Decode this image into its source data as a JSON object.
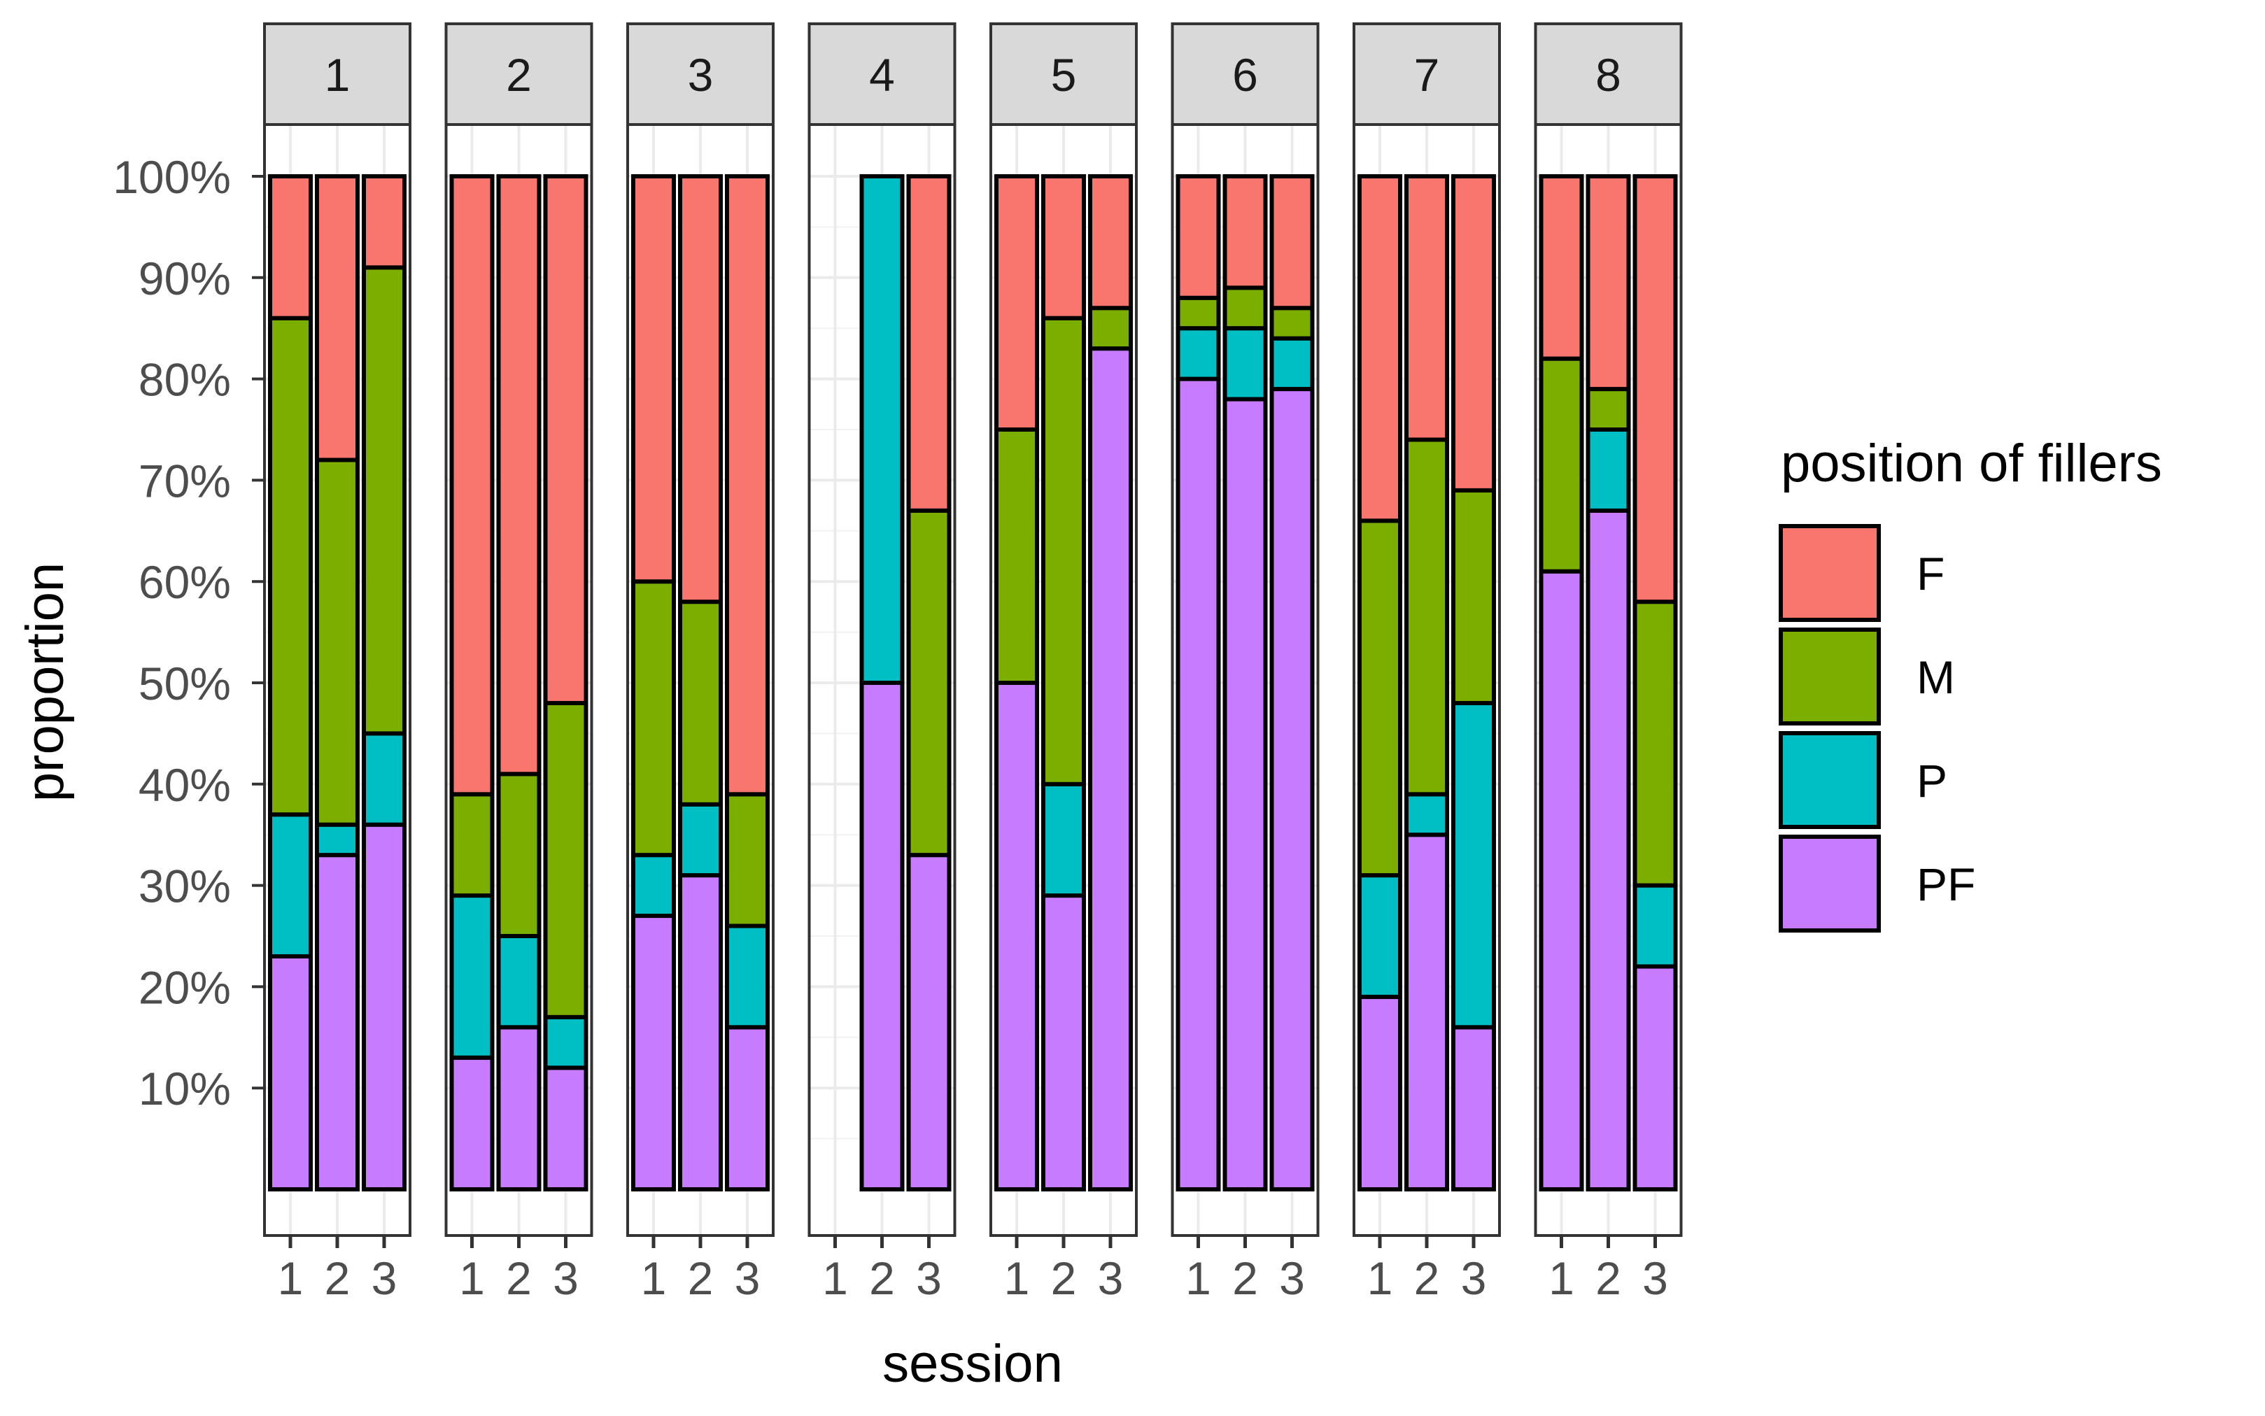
{
  "chart_data": {
    "type": "bar",
    "stacked": true,
    "faceted_by": "speaker",
    "xlabel": "session",
    "ylabel": "proportion",
    "y_ticks": [
      "10%",
      "20%",
      "30%",
      "40%",
      "50%",
      "60%",
      "70%",
      "80%",
      "90%",
      "100%"
    ],
    "ylim": [
      0,
      100
    ],
    "stack_order_bottom_to_top": [
      "PF",
      "P",
      "M",
      "F"
    ],
    "legend": {
      "title": "position of fillers",
      "position": "right",
      "entries": [
        {
          "name": "F",
          "color": "#F8766D"
        },
        {
          "name": "M",
          "color": "#7CAE00"
        },
        {
          "name": "P",
          "color": "#00BFC4"
        },
        {
          "name": "PF",
          "color": "#C77CFF"
        }
      ]
    },
    "panels": [
      {
        "label": "1",
        "sessions": [
          "1",
          "2",
          "3"
        ],
        "series": [
          {
            "name": "PF",
            "values": [
              23,
              33,
              36
            ]
          },
          {
            "name": "P",
            "values": [
              14,
              3,
              9
            ]
          },
          {
            "name": "M",
            "values": [
              49,
              36,
              46
            ]
          },
          {
            "name": "F",
            "values": [
              14,
              28,
              9
            ]
          }
        ]
      },
      {
        "label": "2",
        "sessions": [
          "1",
          "2",
          "3"
        ],
        "series": [
          {
            "name": "PF",
            "values": [
              13,
              16,
              12
            ]
          },
          {
            "name": "P",
            "values": [
              16,
              9,
              5
            ]
          },
          {
            "name": "M",
            "values": [
              10,
              16,
              31
            ]
          },
          {
            "name": "F",
            "values": [
              61,
              59,
              52
            ]
          }
        ]
      },
      {
        "label": "3",
        "sessions": [
          "1",
          "2",
          "3"
        ],
        "series": [
          {
            "name": "PF",
            "values": [
              27,
              31,
              16
            ]
          },
          {
            "name": "P",
            "values": [
              6,
              7,
              10
            ]
          },
          {
            "name": "M",
            "values": [
              27,
              20,
              13
            ]
          },
          {
            "name": "F",
            "values": [
              40,
              42,
              61
            ]
          }
        ]
      },
      {
        "label": "4",
        "sessions": [
          "1",
          "2",
          "3"
        ],
        "series": [
          {
            "name": "PF",
            "values": [
              0,
              50,
              33
            ]
          },
          {
            "name": "P",
            "values": [
              0,
              50,
              0
            ]
          },
          {
            "name": "M",
            "values": [
              0,
              0,
              34
            ]
          },
          {
            "name": "F",
            "values": [
              0,
              0,
              33
            ]
          }
        ]
      },
      {
        "label": "5",
        "sessions": [
          "1",
          "2",
          "3"
        ],
        "series": [
          {
            "name": "PF",
            "values": [
              50,
              29,
              83
            ]
          },
          {
            "name": "P",
            "values": [
              0,
              11,
              0
            ]
          },
          {
            "name": "M",
            "values": [
              25,
              46,
              4
            ]
          },
          {
            "name": "F",
            "values": [
              25,
              14,
              13
            ]
          }
        ]
      },
      {
        "label": "6",
        "sessions": [
          "1",
          "2",
          "3"
        ],
        "series": [
          {
            "name": "PF",
            "values": [
              80,
              78,
              79
            ]
          },
          {
            "name": "P",
            "values": [
              5,
              7,
              5
            ]
          },
          {
            "name": "M",
            "values": [
              3,
              4,
              3
            ]
          },
          {
            "name": "F",
            "values": [
              12,
              11,
              13
            ]
          }
        ]
      },
      {
        "label": "7",
        "sessions": [
          "1",
          "2",
          "3"
        ],
        "series": [
          {
            "name": "PF",
            "values": [
              19,
              35,
              16
            ]
          },
          {
            "name": "P",
            "values": [
              12,
              4,
              32
            ]
          },
          {
            "name": "M",
            "values": [
              35,
              35,
              21
            ]
          },
          {
            "name": "F",
            "values": [
              34,
              26,
              31
            ]
          }
        ]
      },
      {
        "label": "8",
        "sessions": [
          "1",
          "2",
          "3"
        ],
        "series": [
          {
            "name": "PF",
            "values": [
              61,
              67,
              22
            ]
          },
          {
            "name": "P",
            "values": [
              0,
              8,
              8
            ]
          },
          {
            "name": "M",
            "values": [
              21,
              4,
              28
            ]
          },
          {
            "name": "F",
            "values": [
              18,
              21,
              42
            ]
          }
        ]
      }
    ]
  }
}
